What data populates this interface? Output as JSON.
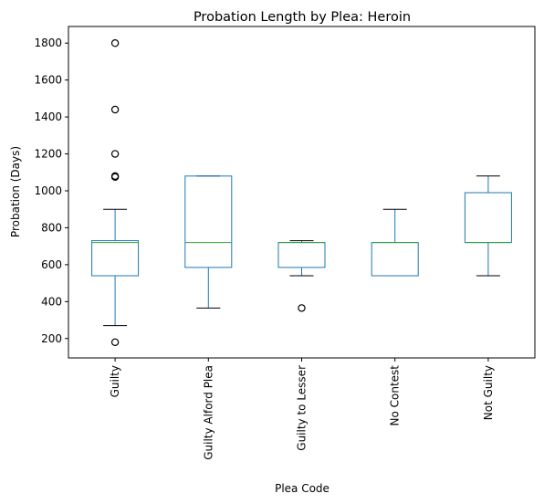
{
  "chart_data": {
    "type": "box",
    "title": "Probation Length by Plea: Heroin",
    "xlabel": "Plea Code",
    "ylabel": "Probation (Days)",
    "ylim": [
      95,
      1890
    ],
    "yticks": [
      200,
      400,
      600,
      800,
      1000,
      1200,
      1400,
      1600,
      1800
    ],
    "grid": false,
    "categories": [
      "Guilty",
      "Guilty Alford Plea",
      "Guilty to Lesser",
      "No Contest",
      "Not Guilty"
    ],
    "boxes": [
      {
        "category": "Guilty",
        "whisker_low": 270,
        "q1": 540,
        "median": 720,
        "q3": 730,
        "whisker_high": 900,
        "outliers": [
          180,
          1075,
          1080,
          1200,
          1440,
          1800
        ]
      },
      {
        "category": "Guilty Alford Plea",
        "whisker_low": 365,
        "q1": 585,
        "median": 720,
        "q3": 1080,
        "whisker_high": 1080,
        "outliers": []
      },
      {
        "category": "Guilty to Lesser",
        "whisker_low": 540,
        "q1": 585,
        "median": 720,
        "q3": 720,
        "whisker_high": 730,
        "outliers": [
          365
        ]
      },
      {
        "category": "No Contest",
        "whisker_low": 540,
        "q1": 540,
        "median": 720,
        "q3": 720,
        "whisker_high": 900,
        "outliers": []
      },
      {
        "category": "Not Guilty",
        "whisker_low": 540,
        "q1": 720,
        "median": 720,
        "q3": 990,
        "whisker_high": 1080,
        "outliers": []
      }
    ],
    "colors": {
      "box": "#1f77b4",
      "median": "#2ca02c",
      "whisker_cap": "#000000",
      "outlier_edge": "#000000"
    }
  }
}
